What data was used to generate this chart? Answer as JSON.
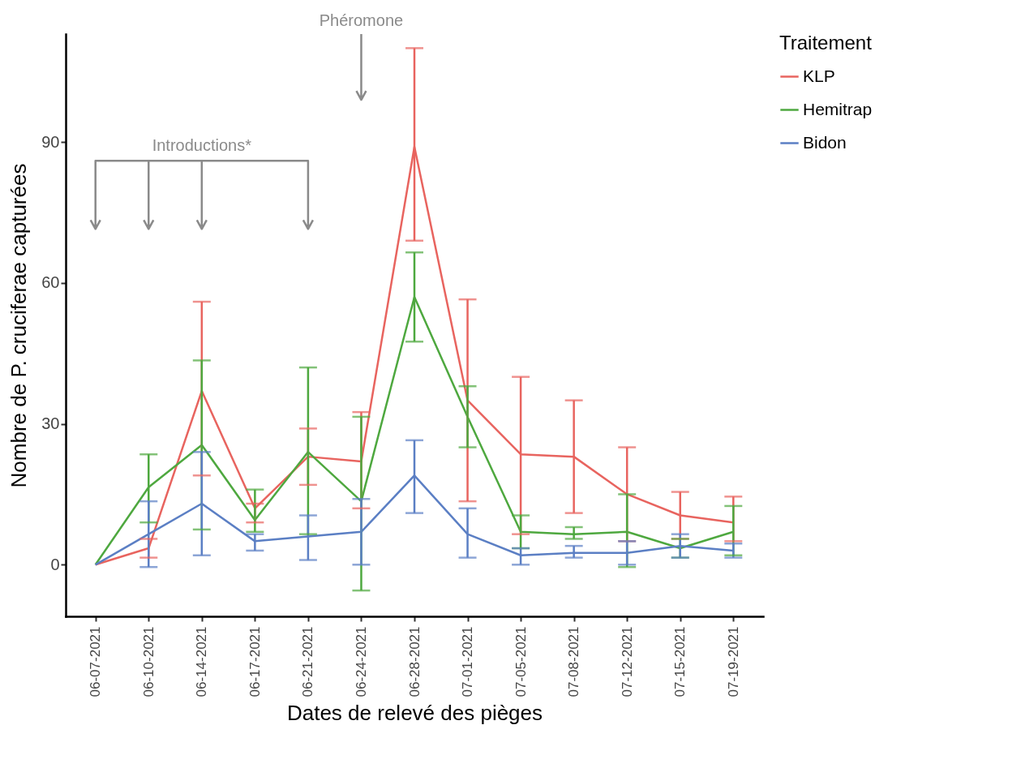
{
  "chart_data": {
    "type": "line",
    "xlabel": "Dates de relevé des pièges",
    "ylabel": "Nombre de P. cruciferae capturées",
    "legend_title": "Traitement",
    "legend": "right",
    "grid": false,
    "categories": [
      "06-07-2021",
      "06-10-2021",
      "06-14-2021",
      "06-17-2021",
      "06-21-2021",
      "06-24-2021",
      "06-28-2021",
      "07-01-2021",
      "07-05-2021",
      "07-08-2021",
      "07-12-2021",
      "07-15-2021",
      "07-19-2021"
    ],
    "ylim": [
      -11,
      113
    ],
    "yticks": [
      0,
      30,
      60,
      90
    ],
    "series": [
      {
        "name": "KLP",
        "color": "#e8645f",
        "values": [
          0,
          3.5,
          37,
          12,
          23,
          22,
          89,
          35,
          23.5,
          23,
          15,
          10.5,
          9
        ],
        "errors": [
          null,
          [
            1.5,
            5.5
          ],
          [
            19,
            56
          ],
          [
            9,
            13
          ],
          [
            17,
            29
          ],
          [
            12,
            32.5
          ],
          [
            69,
            110
          ],
          [
            13.5,
            56.5
          ],
          [
            6.5,
            40
          ],
          [
            11,
            35
          ],
          [
            5,
            25
          ],
          [
            5.5,
            15.5
          ],
          [
            5,
            14.5
          ]
        ]
      },
      {
        "name": "Hemitrap",
        "color": "#4ea83f",
        "values": [
          0,
          16.5,
          25.5,
          9.5,
          24,
          13.5,
          57,
          31.5,
          7,
          6.5,
          7,
          3.5,
          7
        ],
        "errors": [
          null,
          [
            9,
            23.5
          ],
          [
            7.5,
            43.5
          ],
          [
            7,
            16
          ],
          [
            6.5,
            42
          ],
          [
            -5.5,
            31.5
          ],
          [
            47.5,
            66.5
          ],
          [
            25,
            38
          ],
          [
            3.5,
            10.5
          ],
          [
            5.5,
            8
          ],
          [
            -0.5,
            15
          ],
          [
            1.5,
            5.5
          ],
          [
            2,
            12.5
          ]
        ]
      },
      {
        "name": "Bidon",
        "color": "#5b7fc4",
        "values": [
          0,
          6.5,
          13,
          5,
          6,
          7,
          19,
          6.5,
          2,
          2.5,
          2.5,
          4,
          3
        ],
        "errors": [
          null,
          [
            -0.5,
            13.5
          ],
          [
            2,
            24
          ],
          [
            3,
            6.5
          ],
          [
            1,
            10.5
          ],
          [
            0,
            14
          ],
          [
            11,
            26.5
          ],
          [
            1.5,
            12
          ],
          [
            0,
            3.5
          ],
          [
            1.5,
            4
          ],
          [
            0,
            5
          ],
          [
            1.5,
            6.5
          ],
          [
            1.5,
            4.5
          ]
        ]
      }
    ],
    "annotations": [
      "Introductions*",
      "Phéromone"
    ]
  }
}
